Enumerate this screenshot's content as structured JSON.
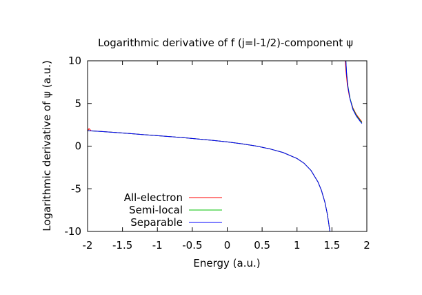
{
  "chart_data": {
    "type": "line",
    "title": "Logarithmic derivative of f (j=l-1/2)-component ψ",
    "xlabel": "Energy (a.u.)",
    "ylabel": "Logarithmic derivative of ψ (a.u.)",
    "xlim": [
      -2,
      2
    ],
    "ylim": [
      -10,
      10
    ],
    "xticks": [
      -2,
      -1.5,
      -1,
      -0.5,
      0,
      0.5,
      1,
      1.5,
      2
    ],
    "xtick_labels": [
      "-2",
      "-1.5",
      "-1",
      "-0.5",
      "0",
      "0.5",
      "1",
      "1.5",
      "2"
    ],
    "yticks": [
      -10,
      -5,
      0,
      5,
      10
    ],
    "ytick_labels": [
      "-10",
      "-5",
      "0",
      "5",
      "10"
    ],
    "grid": false,
    "legend_position": "bottom-left",
    "series": [
      {
        "name": "All-electron",
        "color": "#ff0000",
        "segments": [
          [
            [
              -2.0,
              1.75
            ],
            [
              -1.98,
              2.05
            ],
            [
              -1.95,
              1.8
            ],
            [
              -1.9,
              1.77
            ],
            [
              -1.8,
              1.72
            ],
            [
              -1.6,
              1.6
            ],
            [
              -1.4,
              1.48
            ],
            [
              -1.2,
              1.35
            ],
            [
              -1.0,
              1.22
            ],
            [
              -0.8,
              1.1
            ],
            [
              -0.6,
              0.97
            ],
            [
              -0.4,
              0.82
            ],
            [
              -0.2,
              0.67
            ],
            [
              0.0,
              0.5
            ],
            [
              0.2,
              0.28
            ],
            [
              0.4,
              0.03
            ],
            [
              0.6,
              -0.3
            ],
            [
              0.8,
              -0.75
            ],
            [
              1.0,
              -1.45
            ],
            [
              1.1,
              -2.0
            ],
            [
              1.2,
              -2.85
            ],
            [
              1.3,
              -4.2
            ],
            [
              1.35,
              -5.2
            ],
            [
              1.4,
              -6.6
            ],
            [
              1.43,
              -7.8
            ],
            [
              1.45,
              -8.8
            ],
            [
              1.47,
              -10.0
            ]
          ],
          [
            [
              1.69,
              10.0
            ],
            [
              1.7,
              8.9
            ],
            [
              1.72,
              7.2
            ],
            [
              1.75,
              5.8
            ],
            [
              1.8,
              4.5
            ],
            [
              1.85,
              3.7
            ],
            [
              1.9,
              3.15
            ],
            [
              1.93,
              2.85
            ]
          ]
        ]
      },
      {
        "name": "Semi-local",
        "color": "#00c000",
        "segments": [
          [
            [
              -2.0,
              1.8
            ],
            [
              -1.9,
              1.76
            ],
            [
              -1.8,
              1.71
            ],
            [
              -1.6,
              1.6
            ],
            [
              -1.4,
              1.48
            ],
            [
              -1.2,
              1.35
            ],
            [
              -1.0,
              1.22
            ],
            [
              -0.8,
              1.1
            ],
            [
              -0.6,
              0.97
            ],
            [
              -0.4,
              0.82
            ],
            [
              -0.2,
              0.67
            ],
            [
              0.0,
              0.5
            ],
            [
              0.2,
              0.28
            ],
            [
              0.4,
              0.03
            ],
            [
              0.6,
              -0.3
            ],
            [
              0.8,
              -0.75
            ],
            [
              1.0,
              -1.45
            ],
            [
              1.1,
              -2.0
            ],
            [
              1.2,
              -2.85
            ],
            [
              1.3,
              -4.2
            ],
            [
              1.35,
              -5.2
            ],
            [
              1.4,
              -6.6
            ],
            [
              1.43,
              -7.8
            ],
            [
              1.45,
              -8.8
            ],
            [
              1.47,
              -10.0
            ]
          ],
          [
            [
              1.7,
              10.0
            ],
            [
              1.71,
              8.6
            ],
            [
              1.73,
              7.0
            ],
            [
              1.76,
              5.6
            ],
            [
              1.8,
              4.4
            ],
            [
              1.85,
              3.6
            ],
            [
              1.9,
              3.05
            ],
            [
              1.93,
              2.75
            ]
          ]
        ]
      },
      {
        "name": "Separable",
        "color": "#0000ff",
        "segments": [
          [
            [
              -2.0,
              1.8
            ],
            [
              -1.9,
              1.76
            ],
            [
              -1.8,
              1.71
            ],
            [
              -1.6,
              1.6
            ],
            [
              -1.4,
              1.48
            ],
            [
              -1.2,
              1.35
            ],
            [
              -1.0,
              1.22
            ],
            [
              -0.8,
              1.1
            ],
            [
              -0.6,
              0.97
            ],
            [
              -0.4,
              0.82
            ],
            [
              -0.2,
              0.67
            ],
            [
              0.0,
              0.5
            ],
            [
              0.2,
              0.28
            ],
            [
              0.4,
              0.03
            ],
            [
              0.6,
              -0.3
            ],
            [
              0.8,
              -0.75
            ],
            [
              1.0,
              -1.45
            ],
            [
              1.1,
              -2.0
            ],
            [
              1.2,
              -2.85
            ],
            [
              1.3,
              -4.2
            ],
            [
              1.35,
              -5.2
            ],
            [
              1.4,
              -6.6
            ],
            [
              1.43,
              -7.8
            ],
            [
              1.45,
              -8.8
            ],
            [
              1.47,
              -10.0
            ]
          ],
          [
            [
              1.7,
              10.0
            ],
            [
              1.71,
              8.5
            ],
            [
              1.73,
              6.9
            ],
            [
              1.76,
              5.5
            ],
            [
              1.8,
              4.3
            ],
            [
              1.85,
              3.5
            ],
            [
              1.9,
              2.95
            ],
            [
              1.93,
              2.65
            ]
          ]
        ]
      }
    ]
  }
}
